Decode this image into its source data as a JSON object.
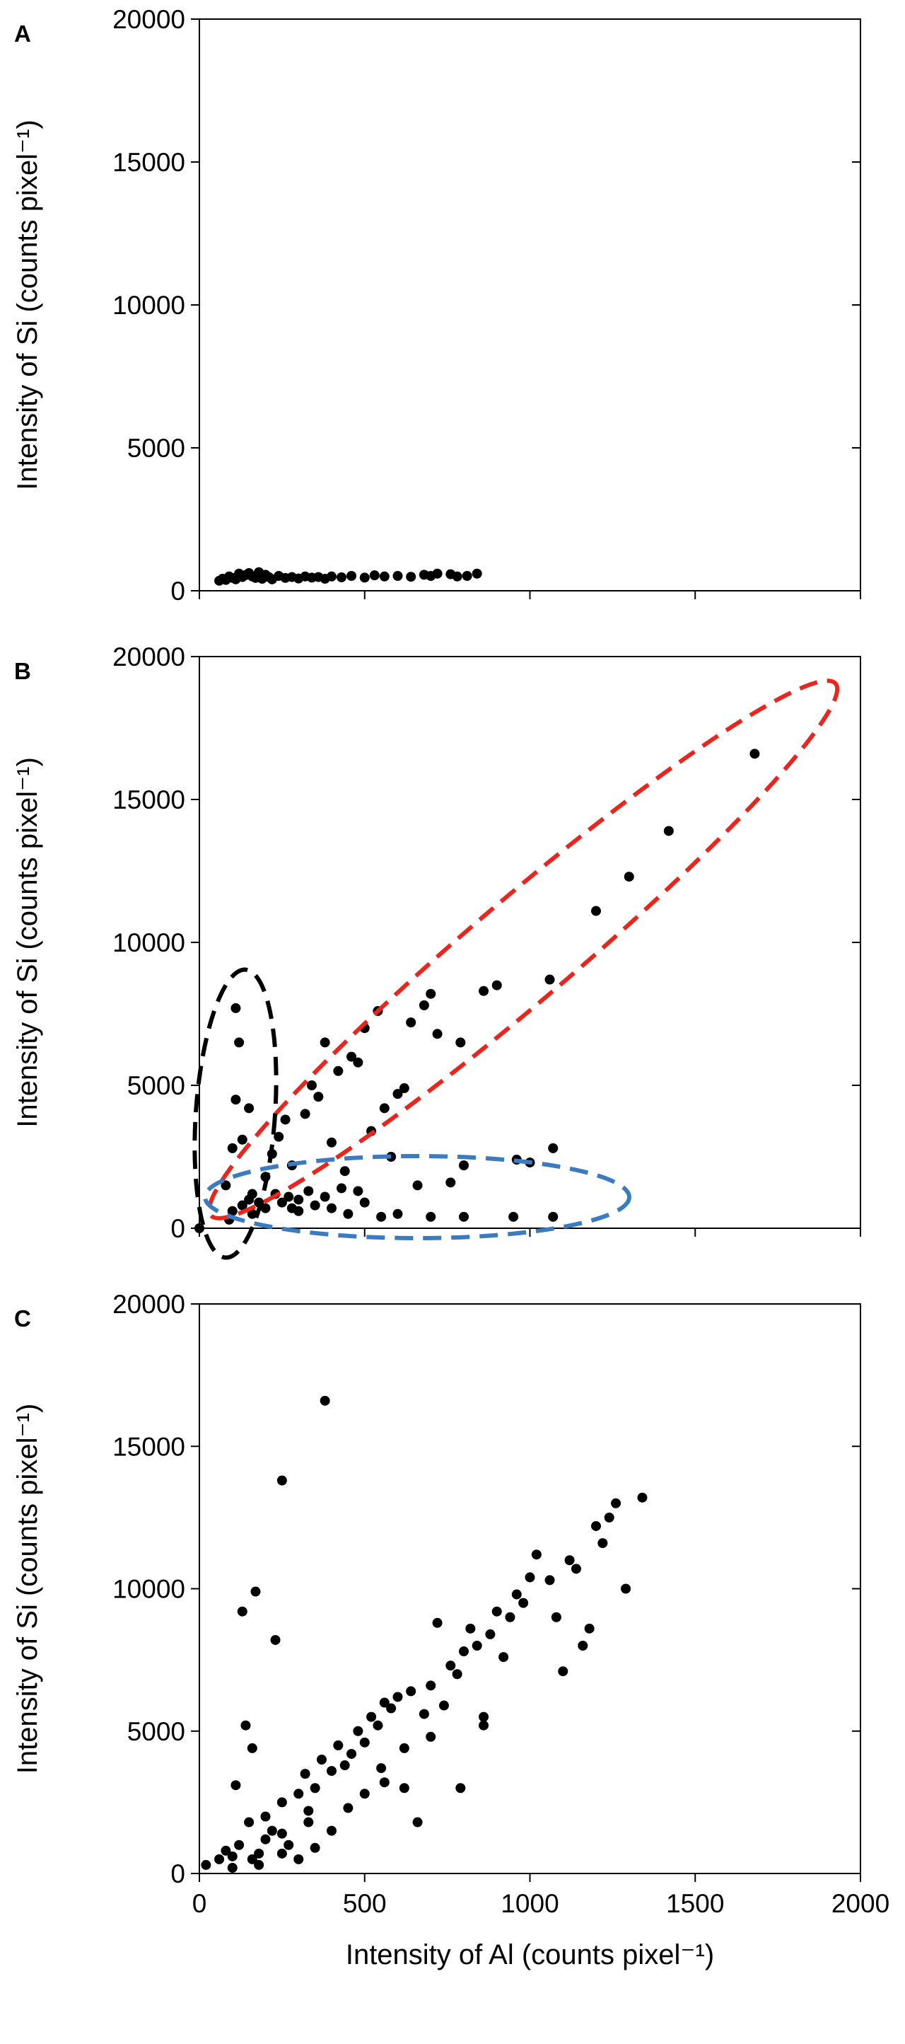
{
  "chart_data": [
    {
      "type": "scatter",
      "panel_label": "A",
      "y_label": "Intensity of Si (counts pixel⁻¹)",
      "color": "#000000",
      "xlim": [
        0,
        2000
      ],
      "xticks": [
        0,
        500,
        1000,
        1500,
        2000
      ],
      "xtick_labels": false,
      "ylim": [
        0,
        20000
      ],
      "yticks": [
        0,
        5000,
        10000,
        15000,
        20000
      ],
      "x": [
        60,
        70,
        80,
        90,
        100,
        110,
        120,
        130,
        140,
        150,
        160,
        170,
        180,
        190,
        200,
        210,
        220,
        240,
        260,
        280,
        300,
        320,
        340,
        360,
        380,
        400,
        430,
        460,
        500,
        530,
        560,
        600,
        640,
        680,
        700,
        720,
        760,
        780,
        810,
        840
      ],
      "y": [
        350,
        420,
        380,
        500,
        450,
        400,
        600,
        480,
        550,
        620,
        500,
        450,
        650,
        420,
        560,
        480,
        400,
        520,
        450,
        480,
        430,
        500,
        460,
        480,
        420,
        500,
        470,
        520,
        460,
        540,
        500,
        520,
        490,
        560,
        520,
        600,
        580,
        500,
        520,
        600
      ]
    },
    {
      "type": "scatter",
      "panel_label": "B",
      "y_label": "Intensity of Si (counts pixel⁻¹)",
      "color": "#000000",
      "xlim": [
        0,
        2000
      ],
      "xticks": [
        0,
        500,
        1000,
        1500,
        2000
      ],
      "xtick_labels": false,
      "ylim": [
        0,
        20000
      ],
      "yticks": [
        0,
        5000,
        10000,
        15000,
        20000
      ],
      "x": [
        0,
        80,
        100,
        110,
        120,
        110,
        130,
        150,
        160,
        180,
        200,
        220,
        240,
        260,
        280,
        300,
        320,
        340,
        360,
        380,
        400,
        420,
        440,
        460,
        480,
        500,
        520,
        540,
        560,
        580,
        600,
        620,
        640,
        680,
        700,
        720,
        760,
        790,
        800,
        860,
        900,
        960,
        1000,
        1060,
        1070,
        1200,
        1300,
        1420,
        1680,
        100,
        130,
        160,
        200,
        250,
        300,
        350,
        400,
        450,
        500,
        550,
        600,
        700,
        800,
        950,
        1070,
        230,
        270,
        330,
        430,
        90,
        150,
        280,
        380,
        480,
        660
      ],
      "y": [
        0,
        1500,
        2800,
        7700,
        6500,
        4500,
        3100,
        4200,
        1200,
        900,
        1800,
        2600,
        3200,
        3800,
        2200,
        1000,
        4000,
        5000,
        4600,
        6500,
        3000,
        5500,
        2000,
        6000,
        5800,
        7000,
        3400,
        7600,
        4200,
        2500,
        4700,
        4900,
        7200,
        7800,
        8200,
        6800,
        1600,
        6500,
        2200,
        8300,
        8500,
        2400,
        2300,
        8700,
        2800,
        11100,
        12300,
        13900,
        16600,
        600,
        800,
        500,
        700,
        900,
        600,
        800,
        700,
        500,
        900,
        400,
        500,
        400,
        400,
        400,
        400,
        1200,
        1100,
        1300,
        1400,
        300,
        1000,
        700,
        1100,
        1300,
        1500
      ]
    },
    {
      "type": "scatter",
      "panel_label": "C",
      "y_label": "Intensity of Si (counts pixel⁻¹)",
      "x_label": "Intensity of Al (counts pixel⁻¹)",
      "color": "#000000",
      "xlim": [
        0,
        2000
      ],
      "xticks": [
        0,
        500,
        1000,
        1500,
        2000
      ],
      "xtick_labels": true,
      "ylim": [
        0,
        20000
      ],
      "yticks": [
        0,
        5000,
        10000,
        15000,
        20000
      ],
      "x": [
        20,
        60,
        80,
        100,
        110,
        120,
        130,
        140,
        150,
        160,
        170,
        180,
        200,
        230,
        250,
        380,
        200,
        220,
        250,
        270,
        300,
        320,
        330,
        350,
        370,
        400,
        420,
        440,
        460,
        480,
        500,
        520,
        540,
        560,
        580,
        600,
        620,
        640,
        660,
        680,
        700,
        720,
        740,
        760,
        780,
        800,
        820,
        840,
        860,
        880,
        900,
        920,
        940,
        960,
        980,
        1000,
        1020,
        1060,
        1080,
        1100,
        1120,
        1140,
        1160,
        1180,
        1200,
        1220,
        1240,
        1260,
        1290,
        1340,
        790,
        700,
        860,
        560,
        100,
        160,
        250,
        300,
        350,
        400,
        450,
        500,
        550,
        620,
        250,
        330,
        180
      ],
      "y": [
        300,
        500,
        800,
        600,
        3100,
        1000,
        9200,
        5200,
        1800,
        4400,
        9900,
        700,
        1200,
        8200,
        13800,
        16600,
        2000,
        1500,
        2500,
        1000,
        2800,
        3500,
        2200,
        3000,
        4000,
        3600,
        4500,
        3800,
        4200,
        5000,
        4600,
        5500,
        5200,
        6000,
        5800,
        6200,
        3000,
        6400,
        1800,
        5600,
        6600,
        8800,
        5900,
        7300,
        7000,
        7800,
        8600,
        8000,
        5500,
        8400,
        9200,
        7600,
        9000,
        9800,
        9500,
        10400,
        11200,
        10300,
        9000,
        7100,
        11000,
        10700,
        8000,
        8600,
        12200,
        11600,
        12500,
        13000,
        10000,
        13200,
        3000,
        4800,
        5200,
        3200,
        200,
        500,
        700,
        500,
        900,
        1500,
        2300,
        2800,
        3700,
        4400,
        1400,
        1800,
        300
      ]
    }
  ]
}
